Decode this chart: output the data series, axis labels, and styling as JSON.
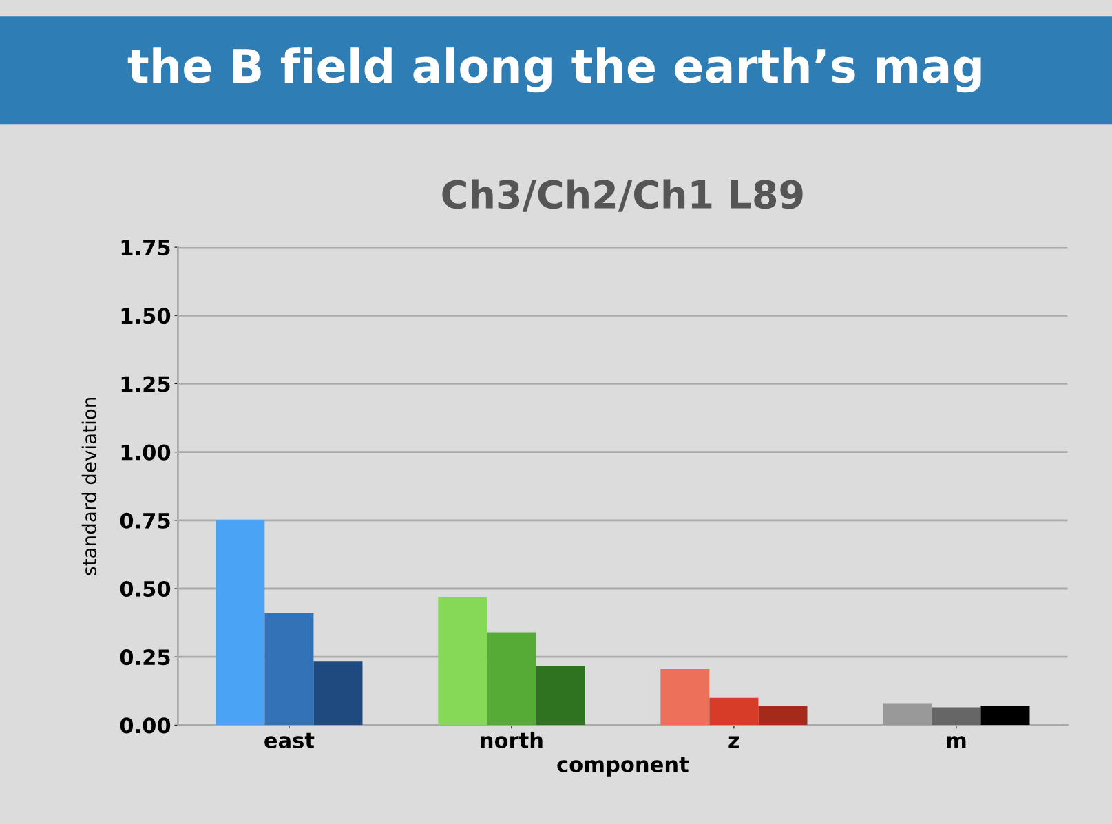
{
  "chart_data": {
    "type": "bar",
    "title": "Ch3/Ch2/Ch1 L89",
    "xlabel": "component",
    "ylabel": "standard deviation",
    "annotations": [
      "the B field along the earth’s mag"
    ],
    "categories": [
      "east",
      "north",
      "z",
      "m"
    ],
    "series": [
      {
        "colors": [
          "#4aa3f5",
          "#86d957",
          "#ec705a",
          "#999999"
        ],
        "values": [
          0.75,
          0.47,
          0.205,
          0.08
        ]
      },
      {
        "colors": [
          "#3472b8",
          "#55ab35",
          "#d63c27",
          "#666666"
        ],
        "values": [
          0.41,
          0.34,
          0.1,
          0.065
        ]
      },
      {
        "colors": [
          "#1f4a80",
          "#2f7320",
          "#a52a1a",
          "#000000"
        ],
        "values": [
          0.235,
          0.215,
          0.07,
          0.07
        ]
      }
    ],
    "ylim": [
      0,
      1.75
    ],
    "yticks": [
      {
        "value": 0,
        "label": "0.00"
      },
      {
        "value": 0.25,
        "label": "0.25"
      },
      {
        "value": 0.5,
        "label": "0.50"
      },
      {
        "value": 0.75,
        "label": "0.75"
      },
      {
        "value": 1.0,
        "label": "1.00"
      },
      {
        "value": 1.25,
        "label": "1.25"
      },
      {
        "value": 1.5,
        "label": "1.50"
      },
      {
        "value": 1.75,
        "label": "1.75"
      }
    ],
    "grid": "y",
    "legend": false
  }
}
